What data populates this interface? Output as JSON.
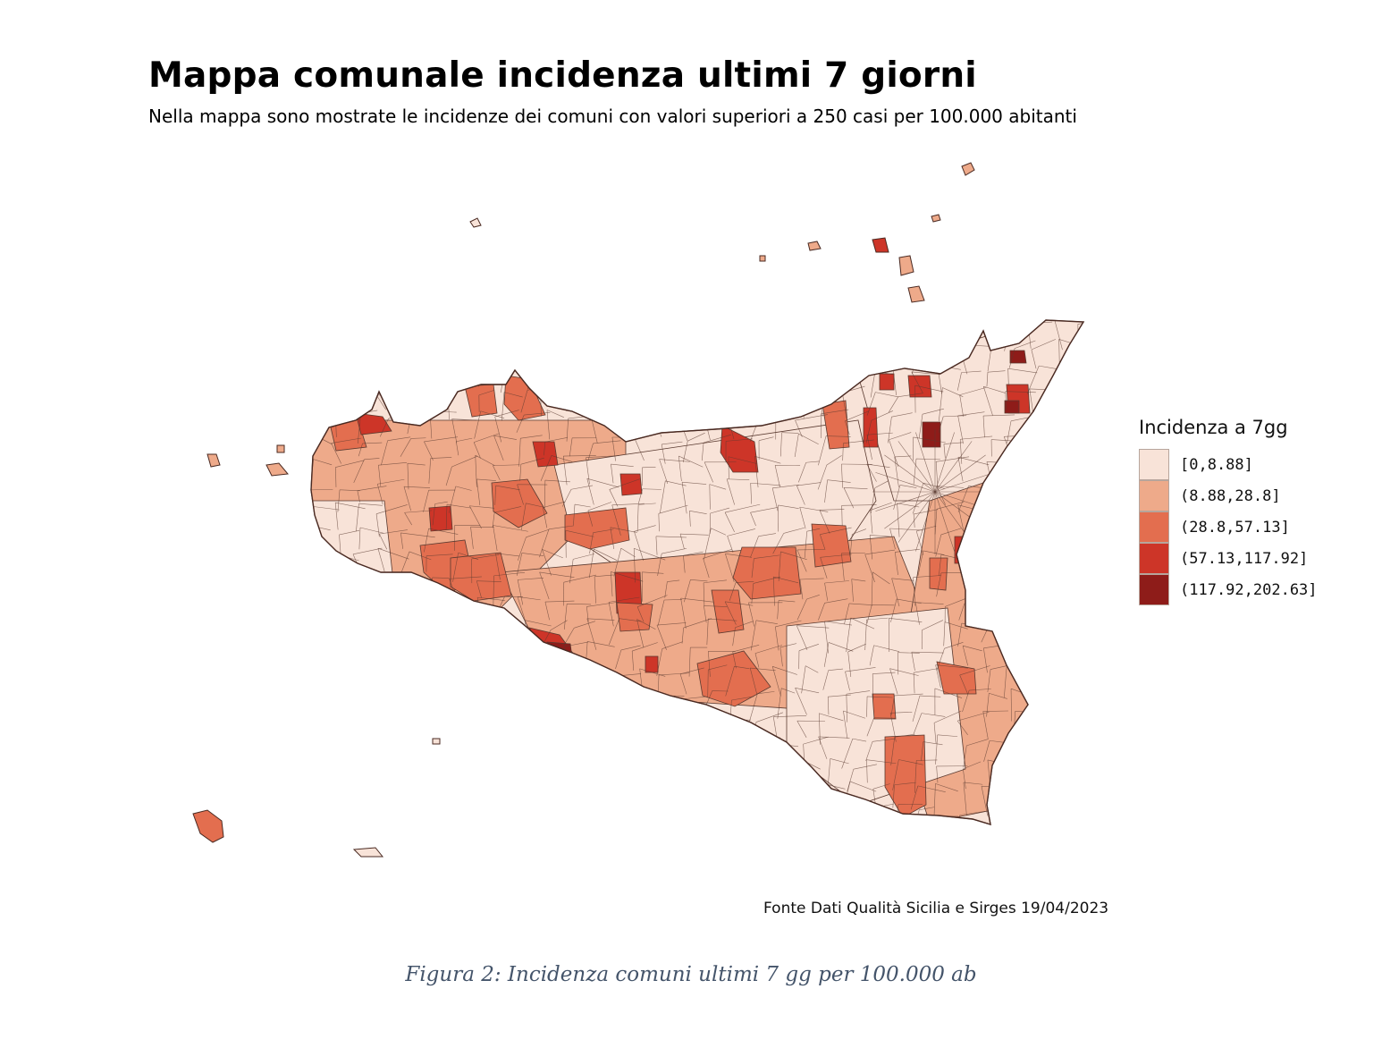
{
  "title": "Mappa comunale incidenza ultimi 7 giorni",
  "subtitle": "Nella mappa sono mostrate le incidenze dei comuni con valori superiori a 250 casi per 100.000 abitanti",
  "legend": {
    "title": "Incidenza a 7gg",
    "items": [
      {
        "label": "[0,8.88]",
        "color": "#f8e3d8"
      },
      {
        "label": "(8.88,28.8]",
        "color": "#eeaa8a"
      },
      {
        "label": "(28.8,57.13]",
        "color": "#e36e4f"
      },
      {
        "label": "(57.13,117.92]",
        "color": "#cd3528"
      },
      {
        "label": "(117.92,202.63]",
        "color": "#8e1c19"
      }
    ]
  },
  "source": "Fonte Dati Qualità Sicilia e Sirges 19/04/2023",
  "caption": "Figura 2: Incidenza comuni ultimi 7 gg per 100.000 ab",
  "map": {
    "region": "Sicilia",
    "border_color": "#5a3a30"
  }
}
